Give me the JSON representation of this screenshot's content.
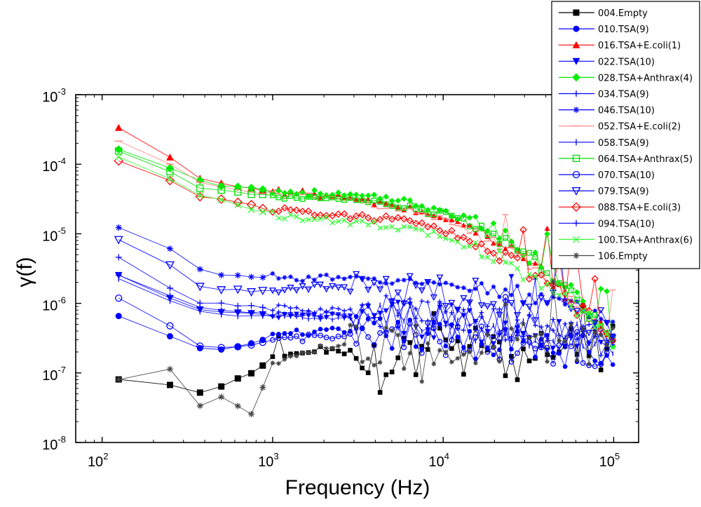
{
  "chart_data": {
    "type": "line",
    "title": "",
    "xlabel": "Frequency (Hz)",
    "ylabel": "γ(f)",
    "xscale": "log",
    "yscale": "log",
    "xlim": [
      70,
      140000
    ],
    "ylim": [
      1e-08,
      0.001
    ],
    "x_ticks": [
      {
        "value": 100,
        "base": "10",
        "exp": "2"
      },
      {
        "value": 1000,
        "base": "10",
        "exp": "3"
      },
      {
        "value": 10000,
        "base": "10",
        "exp": "4"
      },
      {
        "value": 100000,
        "base": "10",
        "exp": "5"
      }
    ],
    "y_ticks": [
      {
        "value": 1e-08,
        "base": "10",
        "exp": "-8"
      },
      {
        "value": 1e-07,
        "base": "10",
        "exp": "-7"
      },
      {
        "value": 1e-06,
        "base": "10",
        "exp": "-6"
      },
      {
        "value": 1e-05,
        "base": "10",
        "exp": "-5"
      },
      {
        "value": 0.0001,
        "base": "10",
        "exp": "-4"
      },
      {
        "value": 0.001,
        "base": "10",
        "exp": "-3"
      }
    ],
    "legend_position": "top-right",
    "anchor_x": [
      125,
      250,
      375,
      500,
      750,
      1000,
      2000,
      5000,
      10000,
      20000,
      50000,
      100000
    ],
    "series": [
      {
        "name": "004.Empty",
        "color": "#000000",
        "marker": "square-filled",
        "values": [
          8e-08,
          6.5e-08,
          5.2e-08,
          6.3e-08,
          1e-07,
          1.6e-07,
          2.2e-07,
          1.7e-07,
          2.2e-07,
          2.6e-07,
          3e-07,
          3.2e-07
        ]
      },
      {
        "name": "010.TSA(9)",
        "color": "#0000ff",
        "marker": "circle-filled",
        "values": [
          6.5e-07,
          3.3e-07,
          2.2e-07,
          2.2e-07,
          2.6e-07,
          3.5e-07,
          4e-07,
          3.6e-07,
          3.2e-07,
          2.6e-07,
          2.2e-07,
          2e-07
        ]
      },
      {
        "name": "016.TSA+E.coli(1)",
        "color": "#ff0000",
        "marker": "triangle-up-filled",
        "values": [
          0.00033,
          0.000125,
          6.3e-05,
          5.2e-05,
          4.6e-05,
          4.1e-05,
          3.6e-05,
          2.6e-05,
          1.7e-05,
          9e-06,
          1.6e-06,
          3e-07
        ]
      },
      {
        "name": "022.TSA(10)",
        "color": "#0000ff",
        "marker": "triangle-down-filled",
        "values": [
          2.5e-06,
          1.2e-06,
          8e-07,
          7.5e-07,
          7e-07,
          6.6e-07,
          6.4e-07,
          6.1e-07,
          5.6e-07,
          4.6e-07,
          3.6e-07,
          2.6e-07
        ]
      },
      {
        "name": "028.TSA+Anthrax(4)",
        "color": "#00ee00",
        "marker": "diamond-filled",
        "values": [
          0.00016,
          9e-05,
          6e-05,
          5e-05,
          4.6e-05,
          4.1e-05,
          3.8e-05,
          3.1e-05,
          2.2e-05,
          1.1e-05,
          2.2e-06,
          3e-07
        ]
      },
      {
        "name": "034.TSA(9)",
        "color": "#0000ff",
        "marker": "plus",
        "values": [
          4.5e-06,
          1.6e-06,
          1e-06,
          1e-06,
          9e-07,
          8.6e-07,
          8e-07,
          7.3e-07,
          6.6e-07,
          5.6e-07,
          4.1e-07,
          3.1e-07
        ]
      },
      {
        "name": "046.TSA(10)",
        "color": "#0000ff",
        "marker": "star",
        "values": [
          1.2e-05,
          6e-06,
          3.2e-06,
          2.6e-06,
          2.4e-06,
          2.4e-06,
          2.3e-06,
          2.1e-06,
          1.9e-06,
          1.5e-06,
          1.1e-06,
          5e-07
        ]
      },
      {
        "name": "052.TSA+E.coli(2)",
        "color": "#ff8080",
        "marker": "dash",
        "values": [
          0.00021,
          0.0001,
          5.5e-05,
          4.6e-05,
          4.1e-05,
          3.7e-05,
          3.3e-05,
          2.4e-05,
          1.6e-05,
          8e-06,
          1.5e-06,
          3e-07
        ]
      },
      {
        "name": "058.TSA(9)",
        "color": "#0000ff",
        "marker": "vbar",
        "values": [
          2.2e-06,
          1.1e-06,
          7.5e-07,
          7e-07,
          6.6e-07,
          6.4e-07,
          6.1e-07,
          5.8e-07,
          5.3e-07,
          4.4e-07,
          3.4e-07,
          2.6e-07
        ]
      },
      {
        "name": "064.TSA+Anthrax(5)",
        "color": "#00dd00",
        "marker": "square-open",
        "values": [
          0.00015,
          8e-05,
          4.6e-05,
          4.1e-05,
          3.8e-05,
          3.5e-05,
          3.2e-05,
          2.6e-05,
          1.9e-05,
          1e-05,
          2e-06,
          3e-07
        ]
      },
      {
        "name": "070.TSA(10)",
        "color": "#0000ff",
        "marker": "circle-open",
        "values": [
          1.15e-06,
          4.6e-07,
          2.4e-07,
          2.3e-07,
          2.5e-07,
          3e-07,
          3.3e-07,
          3.2e-07,
          3e-07,
          2.6e-07,
          2.3e-07,
          2e-07
        ]
      },
      {
        "name": "079.TSA(9)",
        "color": "#0000ff",
        "marker": "triangle-down-open",
        "values": [
          8.5e-06,
          3.5e-06,
          1.8e-06,
          1.6e-06,
          1.5e-06,
          1.6e-06,
          1.7e-06,
          1.6e-06,
          1.4e-06,
          1.2e-06,
          9e-07,
          5e-07
        ]
      },
      {
        "name": "088.TSA+E.coli(3)",
        "color": "#ff0000",
        "marker": "diamond-open",
        "values": [
          0.000115,
          5.8e-05,
          3.4e-05,
          3.1e-05,
          2.6e-05,
          2.2e-05,
          2e-05,
          1.6e-05,
          1.1e-05,
          6e-06,
          1.3e-06,
          3e-07
        ]
      },
      {
        "name": "094.TSA(10)",
        "color": "#0000ff",
        "marker": "plus",
        "values": [
          2.6e-06,
          1.3e-06,
          8.5e-07,
          8e-07,
          7.5e-07,
          7.2e-07,
          6.9e-07,
          6.5e-07,
          5.9e-07,
          4.9e-07,
          3.6e-07,
          2.6e-07
        ]
      },
      {
        "name": "100.TSA+Anthrax(6)",
        "color": "#33ff33",
        "marker": "x",
        "values": [
          0.00013,
          6.3e-05,
          3.6e-05,
          3e-05,
          2.2e-05,
          1.9e-05,
          1.6e-05,
          1.3e-05,
          9e-06,
          5e-06,
          1.2e-06,
          3e-07
        ]
      },
      {
        "name": "106.Empty",
        "color": "#444444",
        "marker": "star",
        "values": [
          8.2e-08,
          1.1e-07,
          3.3e-08,
          4.5e-08,
          2.6e-08,
          1.3e-07,
          2.4e-07,
          2.2e-07,
          2.6e-07,
          2.3e-07,
          3e-07,
          3.2e-07
        ]
      }
    ]
  }
}
